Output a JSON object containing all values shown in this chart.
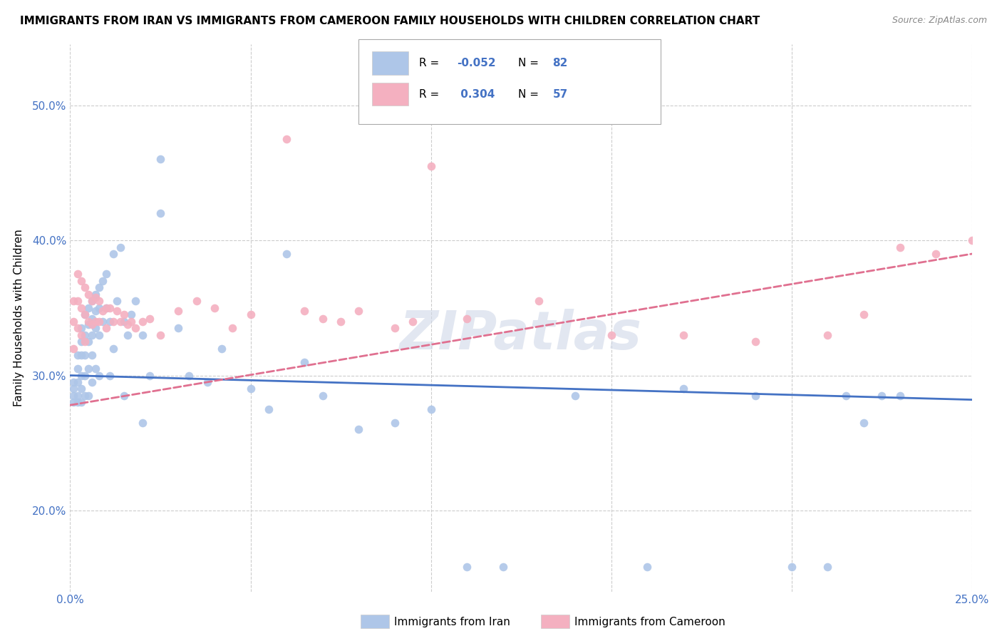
{
  "title": "IMMIGRANTS FROM IRAN VS IMMIGRANTS FROM CAMEROON FAMILY HOUSEHOLDS WITH CHILDREN CORRELATION CHART",
  "source": "Source: ZipAtlas.com",
  "ylabel": "Family Households with Children",
  "x_min": 0.0,
  "x_max": 0.25,
  "y_min": 0.14,
  "y_max": 0.545,
  "x_ticks": [
    0.0,
    0.05,
    0.1,
    0.15,
    0.2,
    0.25
  ],
  "x_tick_labels": [
    "0.0%",
    "",
    "",
    "",
    "",
    "25.0%"
  ],
  "y_ticks": [
    0.2,
    0.3,
    0.4,
    0.5
  ],
  "y_tick_labels": [
    "20.0%",
    "30.0%",
    "40.0%",
    "50.0%"
  ],
  "iran_color": "#aec6e8",
  "cameroon_color": "#f4b0c0",
  "iran_line_color": "#4472c4",
  "cameroon_line_color": "#e07090",
  "R_iran": -0.052,
  "N_iran": 82,
  "R_cameroon": 0.304,
  "N_cameroon": 57,
  "iran_line_y0": 0.3,
  "iran_line_y1": 0.282,
  "cam_line_y0": 0.278,
  "cam_line_y1": 0.39,
  "iran_scatter_x": [
    0.001,
    0.001,
    0.001,
    0.001,
    0.002,
    0.002,
    0.002,
    0.002,
    0.002,
    0.003,
    0.003,
    0.003,
    0.003,
    0.003,
    0.003,
    0.004,
    0.004,
    0.004,
    0.004,
    0.004,
    0.005,
    0.005,
    0.005,
    0.005,
    0.005,
    0.006,
    0.006,
    0.006,
    0.006,
    0.006,
    0.007,
    0.007,
    0.007,
    0.007,
    0.008,
    0.008,
    0.008,
    0.008,
    0.009,
    0.009,
    0.01,
    0.01,
    0.011,
    0.011,
    0.012,
    0.012,
    0.013,
    0.014,
    0.015,
    0.015,
    0.016,
    0.017,
    0.018,
    0.02,
    0.02,
    0.022,
    0.025,
    0.025,
    0.03,
    0.033,
    0.038,
    0.042,
    0.05,
    0.055,
    0.06,
    0.065,
    0.07,
    0.08,
    0.09,
    0.1,
    0.11,
    0.12,
    0.14,
    0.16,
    0.17,
    0.19,
    0.2,
    0.21,
    0.215,
    0.22,
    0.225,
    0.23
  ],
  "iran_scatter_y": [
    0.295,
    0.29,
    0.285,
    0.28,
    0.315,
    0.305,
    0.295,
    0.285,
    0.28,
    0.335,
    0.325,
    0.315,
    0.3,
    0.29,
    0.28,
    0.345,
    0.33,
    0.315,
    0.3,
    0.285,
    0.35,
    0.338,
    0.325,
    0.305,
    0.285,
    0.355,
    0.342,
    0.33,
    0.315,
    0.295,
    0.36,
    0.348,
    0.335,
    0.305,
    0.365,
    0.35,
    0.33,
    0.3,
    0.37,
    0.34,
    0.375,
    0.35,
    0.34,
    0.3,
    0.39,
    0.32,
    0.355,
    0.395,
    0.34,
    0.285,
    0.33,
    0.345,
    0.355,
    0.33,
    0.265,
    0.3,
    0.46,
    0.42,
    0.335,
    0.3,
    0.295,
    0.32,
    0.29,
    0.275,
    0.39,
    0.31,
    0.285,
    0.26,
    0.265,
    0.275,
    0.158,
    0.158,
    0.285,
    0.158,
    0.29,
    0.285,
    0.158,
    0.158,
    0.285,
    0.265,
    0.285,
    0.285
  ],
  "cameroon_scatter_x": [
    0.001,
    0.001,
    0.001,
    0.002,
    0.002,
    0.002,
    0.003,
    0.003,
    0.003,
    0.004,
    0.004,
    0.004,
    0.005,
    0.005,
    0.006,
    0.006,
    0.007,
    0.007,
    0.008,
    0.008,
    0.009,
    0.01,
    0.01,
    0.011,
    0.012,
    0.013,
    0.014,
    0.015,
    0.016,
    0.017,
    0.018,
    0.02,
    0.022,
    0.025,
    0.03,
    0.035,
    0.04,
    0.045,
    0.05,
    0.06,
    0.065,
    0.07,
    0.075,
    0.08,
    0.09,
    0.095,
    0.1,
    0.11,
    0.13,
    0.15,
    0.17,
    0.19,
    0.21,
    0.22,
    0.23,
    0.24,
    0.25
  ],
  "cameroon_scatter_y": [
    0.355,
    0.34,
    0.32,
    0.375,
    0.355,
    0.335,
    0.37,
    0.35,
    0.33,
    0.365,
    0.345,
    0.325,
    0.36,
    0.34,
    0.355,
    0.338,
    0.358,
    0.34,
    0.355,
    0.34,
    0.348,
    0.35,
    0.335,
    0.35,
    0.34,
    0.348,
    0.34,
    0.345,
    0.338,
    0.34,
    0.335,
    0.34,
    0.342,
    0.33,
    0.348,
    0.355,
    0.35,
    0.335,
    0.345,
    0.475,
    0.348,
    0.342,
    0.34,
    0.348,
    0.335,
    0.34,
    0.455,
    0.342,
    0.355,
    0.33,
    0.33,
    0.325,
    0.33,
    0.345,
    0.395,
    0.39,
    0.4
  ],
  "background_color": "#ffffff",
  "grid_color": "#cccccc",
  "watermark": "ZIPatlas"
}
